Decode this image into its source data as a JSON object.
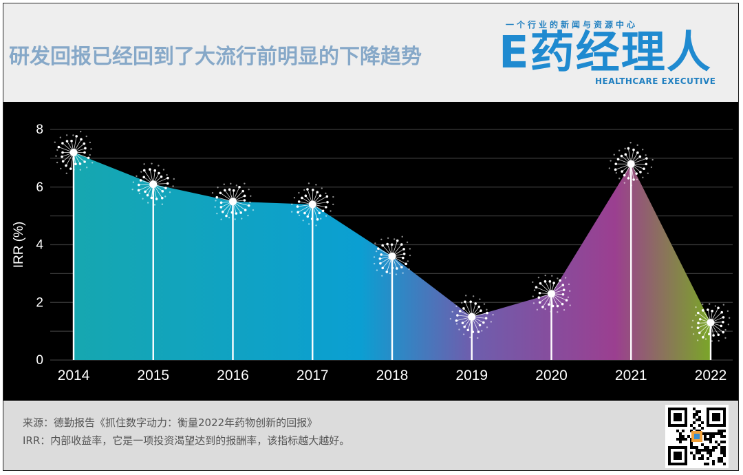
{
  "title": "研发回报已经回到了大流行前明显的下降趋势",
  "logo": {
    "tagline": "一个行业的新闻与资源中心",
    "main": "E药经理人",
    "sub": "HEALTHCARE EXECUTIVE"
  },
  "notes": {
    "source": "来源：德勤报告《抓住数字动力：衡量2022年药物创新的回报》",
    "irr": "IRR：内部收益率，它是一项投资渴望达到的报酬率，该指标越大越好。"
  },
  "chart_data": {
    "type": "area",
    "categories": [
      "2014",
      "2015",
      "2016",
      "2017",
      "2018",
      "2019",
      "2020",
      "2021",
      "2022"
    ],
    "values": [
      7.2,
      6.1,
      5.5,
      5.4,
      3.6,
      1.5,
      2.3,
      6.8,
      1.3
    ],
    "ylabel": "IRR (%)",
    "ylim": [
      0,
      8
    ],
    "yticks": [
      "0",
      "2",
      "4",
      "6",
      "8"
    ],
    "grid": true,
    "colors": {
      "background": "#000000",
      "gradient": [
        "#14a3b5",
        "#0a9ed1",
        "#7d5aa8",
        "#9a3d8e",
        "#6e9e2a"
      ],
      "markers": "#ffffff"
    }
  }
}
